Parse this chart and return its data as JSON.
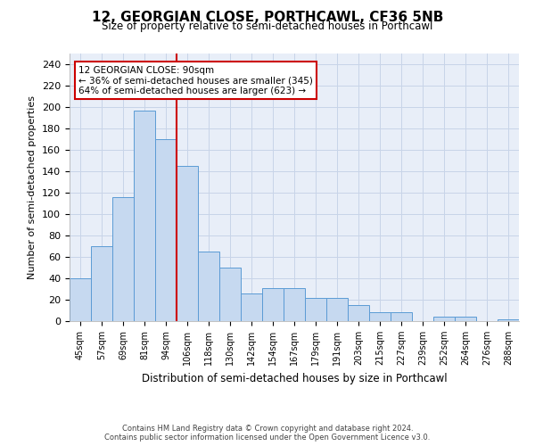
{
  "title": "12, GEORGIAN CLOSE, PORTHCAWL, CF36 5NB",
  "subtitle": "Size of property relative to semi-detached houses in Porthcawl",
  "xlabel": "Distribution of semi-detached houses by size in Porthcawl",
  "ylabel": "Number of semi-detached properties",
  "footer_line1": "Contains HM Land Registry data © Crown copyright and database right 2024.",
  "footer_line2": "Contains public sector information licensed under the Open Government Licence v3.0.",
  "annotation_title": "12 GEORGIAN CLOSE: 90sqm",
  "annotation_line1": "← 36% of semi-detached houses are smaller (345)",
  "annotation_line2": "64% of semi-detached houses are larger (623) →",
  "bar_labels": [
    "45sqm",
    "57sqm",
    "69sqm",
    "81sqm",
    "94sqm",
    "106sqm",
    "118sqm",
    "130sqm",
    "142sqm",
    "154sqm",
    "167sqm",
    "179sqm",
    "191sqm",
    "203sqm",
    "215sqm",
    "227sqm",
    "239sqm",
    "252sqm",
    "264sqm",
    "276sqm",
    "288sqm"
  ],
  "bar_values": [
    40,
    70,
    116,
    197,
    170,
    145,
    65,
    50,
    26,
    31,
    31,
    22,
    22,
    15,
    8,
    8,
    0,
    4,
    4,
    0,
    2
  ],
  "bar_color": "#c6d9f0",
  "bar_edge_color": "#5b9bd5",
  "vline_color": "#cc0000",
  "vline_x_index": 4,
  "annotation_box_edge_color": "#cc0000",
  "annotation_box_face_color": "#ffffff",
  "background_color": "#ffffff",
  "grid_color": "#c8d4e8",
  "ylim": [
    0,
    250
  ],
  "yticks": [
    0,
    20,
    40,
    60,
    80,
    100,
    120,
    140,
    160,
    180,
    200,
    220,
    240
  ]
}
